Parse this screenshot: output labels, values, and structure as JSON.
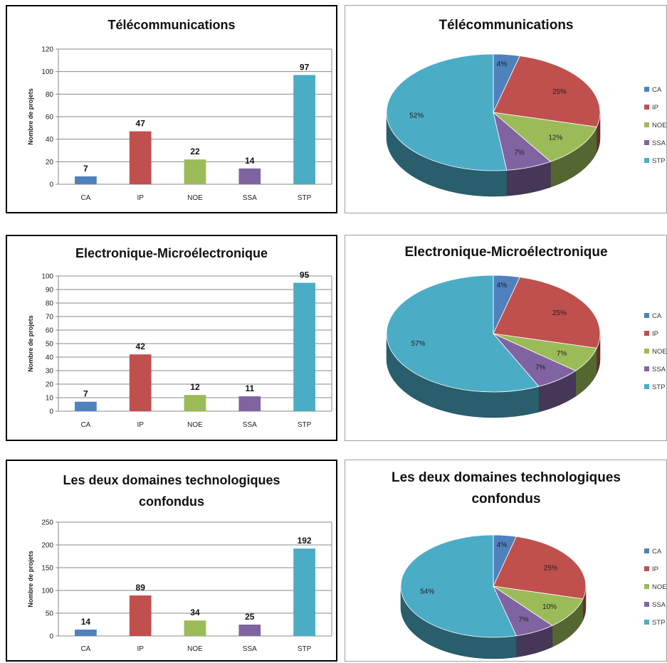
{
  "colors": {
    "CA": "#4f81bd",
    "IP": "#c0504d",
    "NOE": "#9bbb59",
    "SSA": "#8064a2",
    "STP": "#4bacc6"
  },
  "chart_data": [
    {
      "type": "bar",
      "title": "Télécommunications",
      "categories": [
        "CA",
        "IP",
        "NOE",
        "SSA",
        "STP"
      ],
      "values": [
        7,
        47,
        22,
        14,
        97
      ],
      "ylabel": "Nombre de projets",
      "ylim": [
        0,
        120
      ],
      "yticks": [
        0,
        20,
        40,
        60,
        80,
        100,
        120
      ],
      "grid": true
    },
    {
      "type": "pie",
      "title": "Télécommunications",
      "categories": [
        "CA",
        "IP",
        "NOE",
        "SSA",
        "STP"
      ],
      "values": [
        4,
        25,
        12,
        7,
        52
      ],
      "labels": [
        "4%",
        "25%",
        "12%",
        "7%",
        "52%"
      ],
      "legend": "right"
    },
    {
      "type": "bar",
      "title": "Electronique-Microélectronique",
      "categories": [
        "CA",
        "IP",
        "NOE",
        "SSA",
        "STP"
      ],
      "values": [
        7,
        42,
        12,
        11,
        95
      ],
      "ylabel": "Nombre de projets",
      "ylim": [
        0,
        100
      ],
      "yticks": [
        0,
        10,
        20,
        30,
        40,
        50,
        60,
        70,
        80,
        90,
        100
      ],
      "grid": true
    },
    {
      "type": "pie",
      "title": "Electronique-Microélectronique",
      "categories": [
        "CA",
        "IP",
        "NOE",
        "SSA",
        "STP"
      ],
      "values": [
        4,
        25,
        7,
        7,
        57
      ],
      "labels": [
        "4%",
        "25%",
        "7%",
        "7%",
        "57%"
      ],
      "legend": "right"
    },
    {
      "type": "bar",
      "title": [
        "Les deux domaines technologiques",
        "confondus"
      ],
      "categories": [
        "CA",
        "IP",
        "NOE",
        "SSA",
        "STP"
      ],
      "values": [
        14,
        89,
        34,
        25,
        192
      ],
      "ylabel": "Nombre de projets",
      "ylim": [
        0,
        250
      ],
      "yticks": [
        0,
        50,
        100,
        150,
        200,
        250
      ],
      "grid": true
    },
    {
      "type": "pie",
      "title": [
        "Les deux domaines technologiques",
        "confondus"
      ],
      "categories": [
        "CA",
        "IP",
        "NOE",
        "SSA",
        "STP"
      ],
      "values": [
        4,
        25,
        10,
        7,
        54
      ],
      "labels": [
        "4%",
        "25%",
        "10%",
        "7%",
        "54%"
      ],
      "legend": "right"
    }
  ]
}
